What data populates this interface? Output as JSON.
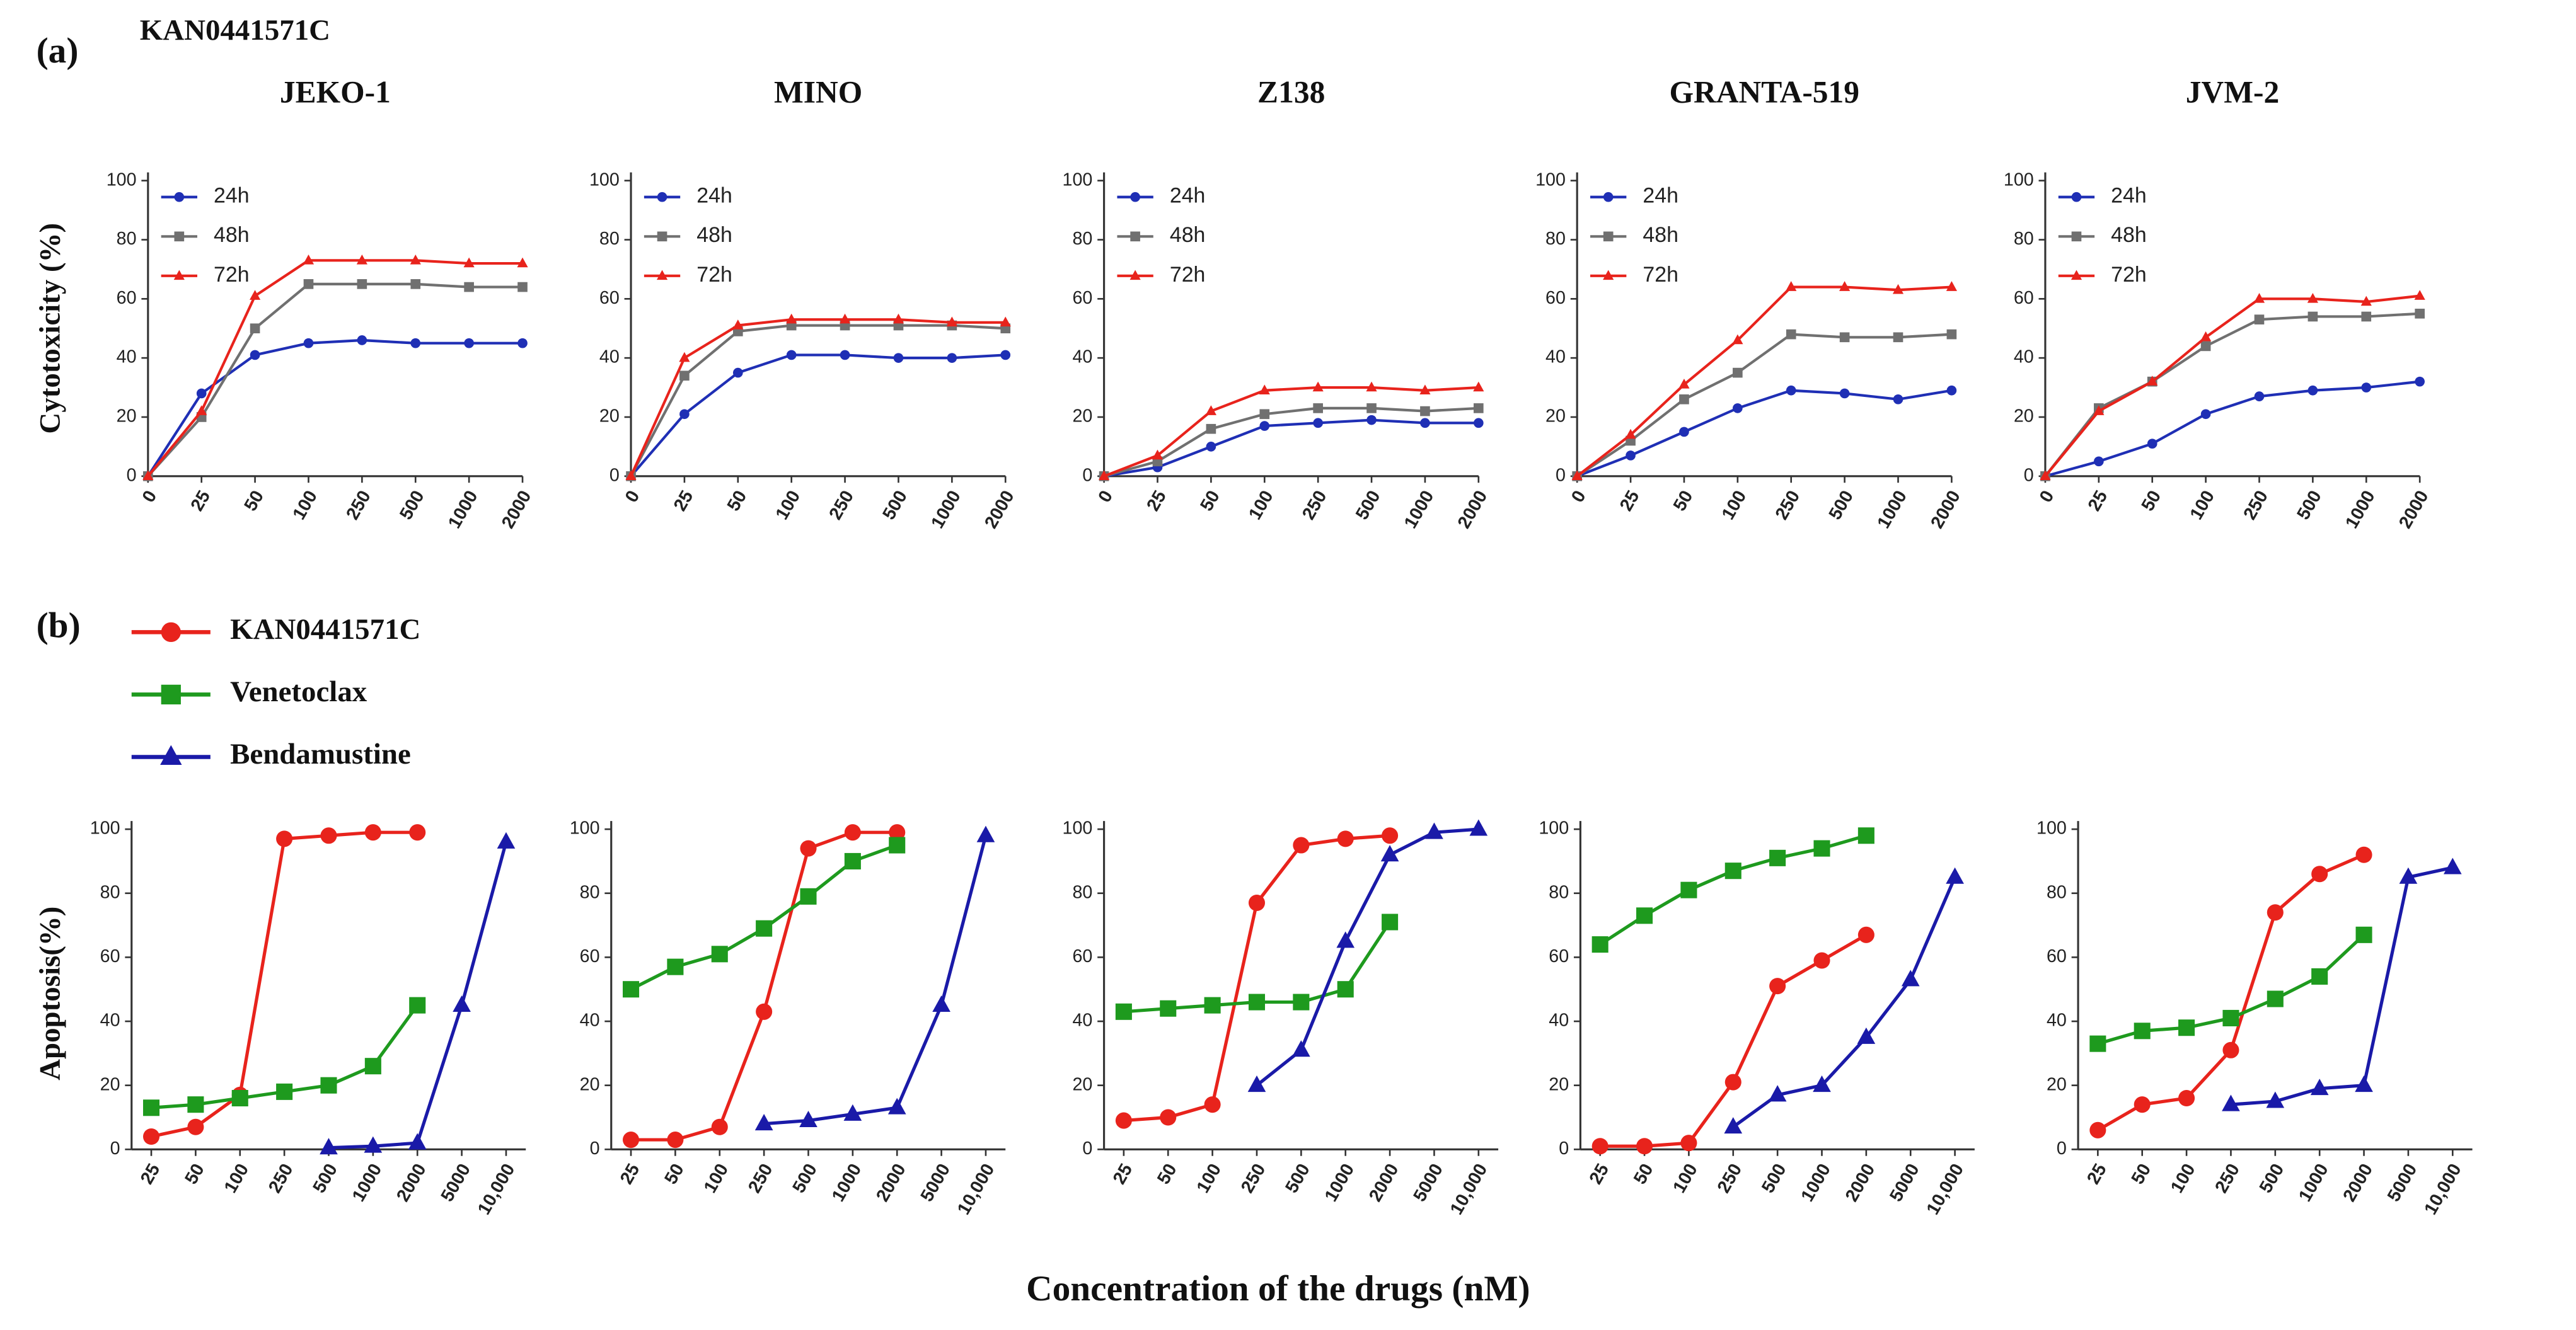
{
  "labels": {
    "panel_a": "(a)",
    "drug": "KAN0441571C",
    "panel_b": "(b)",
    "y_a": "Cytotoxicity (%)",
    "y_b": "Apoptosis(%)",
    "x_b": "Concentration  of the drugs (nM)"
  },
  "chart_data": [
    {
      "type": "line",
      "title": "JEKO-1",
      "categories": [
        "0",
        "25",
        "50",
        "100",
        "250",
        "500",
        "1000",
        "2000"
      ],
      "ylim": [
        0,
        100
      ],
      "yticks": [
        0,
        20,
        40,
        60,
        80,
        100
      ],
      "legend": "upper left",
      "series": [
        {
          "name": "24h",
          "color": "#1f2fb5",
          "marker": "circle",
          "values": [
            0,
            28,
            41,
            45,
            46,
            45,
            45,
            45
          ]
        },
        {
          "name": "48h",
          "color": "#707070",
          "marker": "square",
          "values": [
            0,
            20,
            50,
            65,
            65,
            65,
            64,
            64
          ]
        },
        {
          "name": "72h",
          "color": "#e8231c",
          "marker": "triangle",
          "values": [
            0,
            22,
            61,
            73,
            73,
            73,
            72,
            72
          ]
        }
      ]
    },
    {
      "type": "line",
      "title": "MINO",
      "categories": [
        "0",
        "25",
        "50",
        "100",
        "250",
        "500",
        "1000",
        "2000"
      ],
      "ylim": [
        0,
        100
      ],
      "yticks": [
        0,
        20,
        40,
        60,
        80,
        100
      ],
      "legend": "upper left",
      "series": [
        {
          "name": "24h",
          "color": "#1f2fb5",
          "marker": "circle",
          "values": [
            0,
            21,
            35,
            41,
            41,
            40,
            40,
            41
          ]
        },
        {
          "name": "48h",
          "color": "#707070",
          "marker": "square",
          "values": [
            0,
            34,
            49,
            51,
            51,
            51,
            51,
            50
          ]
        },
        {
          "name": "72h",
          "color": "#e8231c",
          "marker": "triangle",
          "values": [
            0,
            40,
            51,
            53,
            53,
            53,
            52,
            52
          ]
        }
      ]
    },
    {
      "type": "line",
      "title": "Z138",
      "categories": [
        "0",
        "25",
        "50",
        "100",
        "250",
        "500",
        "1000",
        "2000"
      ],
      "ylim": [
        0,
        100
      ],
      "yticks": [
        0,
        20,
        40,
        60,
        80,
        100
      ],
      "legend": "upper left",
      "series": [
        {
          "name": "24h",
          "color": "#1f2fb5",
          "marker": "circle",
          "values": [
            0,
            3,
            10,
            17,
            18,
            19,
            18,
            18
          ]
        },
        {
          "name": "48h",
          "color": "#707070",
          "marker": "square",
          "values": [
            0,
            5,
            16,
            21,
            23,
            23,
            22,
            23
          ]
        },
        {
          "name": "72h",
          "color": "#e8231c",
          "marker": "triangle",
          "values": [
            0,
            7,
            22,
            29,
            30,
            30,
            29,
            30
          ]
        }
      ]
    },
    {
      "type": "line",
      "title": "GRANTA-519",
      "categories": [
        "0",
        "25",
        "50",
        "100",
        "250",
        "500",
        "1000",
        "2000"
      ],
      "ylim": [
        0,
        100
      ],
      "yticks": [
        0,
        20,
        40,
        60,
        80,
        100
      ],
      "legend": "upper left",
      "series": [
        {
          "name": "24h",
          "color": "#1f2fb5",
          "marker": "circle",
          "values": [
            0,
            7,
            15,
            23,
            29,
            28,
            26,
            29
          ]
        },
        {
          "name": "48h",
          "color": "#707070",
          "marker": "square",
          "values": [
            0,
            12,
            26,
            35,
            48,
            47,
            47,
            48
          ]
        },
        {
          "name": "72h",
          "color": "#e8231c",
          "marker": "triangle",
          "values": [
            0,
            14,
            31,
            46,
            64,
            64,
            63,
            64
          ]
        }
      ]
    },
    {
      "type": "line",
      "title": "JVM-2",
      "categories": [
        "0",
        "25",
        "50",
        "100",
        "250",
        "500",
        "1000",
        "2000"
      ],
      "ylim": [
        0,
        100
      ],
      "yticks": [
        0,
        20,
        40,
        60,
        80,
        100
      ],
      "legend": "upper left",
      "series": [
        {
          "name": "24h",
          "color": "#1f2fb5",
          "marker": "circle",
          "values": [
            0,
            5,
            11,
            21,
            27,
            29,
            30,
            32
          ]
        },
        {
          "name": "48h",
          "color": "#707070",
          "marker": "square",
          "values": [
            0,
            23,
            32,
            44,
            53,
            54,
            54,
            55
          ]
        },
        {
          "name": "72h",
          "color": "#e8231c",
          "marker": "triangle",
          "values": [
            0,
            22,
            32,
            47,
            60,
            60,
            59,
            61
          ]
        }
      ]
    },
    {
      "type": "line",
      "categories": [
        "25",
        "50",
        "100",
        "250",
        "500",
        "1000",
        "2000",
        "5000",
        "10,000"
      ],
      "ylim": [
        0,
        100
      ],
      "yticks": [
        0,
        20,
        40,
        60,
        80,
        100
      ],
      "legend": "above",
      "series": [
        {
          "name": "KAN0441571C",
          "color": "#e8231c",
          "marker": "circle",
          "values": [
            4,
            7,
            17,
            97,
            98,
            99,
            99,
            null,
            null
          ]
        },
        {
          "name": "Venetoclax",
          "color": "#1e9a1e",
          "marker": "square",
          "values": [
            13,
            14,
            16,
            18,
            20,
            26,
            45,
            null,
            null
          ]
        },
        {
          "name": "Bendamustine",
          "color": "#1a1aa8",
          "marker": "triangle",
          "values": [
            null,
            null,
            null,
            null,
            0.5,
            1,
            2,
            45,
            96
          ]
        }
      ]
    },
    {
      "type": "line",
      "categories": [
        "25",
        "50",
        "100",
        "250",
        "500",
        "1000",
        "2000",
        "5000",
        "10,000"
      ],
      "ylim": [
        0,
        100
      ],
      "yticks": [
        0,
        20,
        40,
        60,
        80,
        100
      ],
      "series": [
        {
          "color": "#e8231c",
          "marker": "circle",
          "values": [
            3,
            3,
            7,
            43,
            94,
            99,
            99,
            null,
            null
          ]
        },
        {
          "color": "#1e9a1e",
          "marker": "square",
          "values": [
            50,
            57,
            61,
            69,
            79,
            90,
            95,
            null,
            null
          ]
        },
        {
          "color": "#1a1aa8",
          "marker": "triangle",
          "values": [
            null,
            null,
            null,
            8,
            9,
            11,
            13,
            45,
            98
          ]
        }
      ]
    },
    {
      "type": "line",
      "categories": [
        "25",
        "50",
        "100",
        "250",
        "500",
        "1000",
        "2000",
        "5000",
        "10,000"
      ],
      "ylim": [
        0,
        100
      ],
      "yticks": [
        0,
        20,
        40,
        60,
        80,
        100
      ],
      "series": [
        {
          "color": "#e8231c",
          "marker": "circle",
          "values": [
            9,
            10,
            14,
            77,
            95,
            97,
            98,
            null,
            null
          ]
        },
        {
          "color": "#1e9a1e",
          "marker": "square",
          "values": [
            43,
            44,
            45,
            46,
            46,
            50,
            71,
            null,
            null
          ]
        },
        {
          "color": "#1a1aa8",
          "marker": "triangle",
          "values": [
            null,
            null,
            null,
            20,
            31,
            65,
            92,
            99,
            100
          ]
        }
      ]
    },
    {
      "type": "line",
      "categories": [
        "25",
        "50",
        "100",
        "250",
        "500",
        "1000",
        "2000",
        "5000",
        "10,000"
      ],
      "ylim": [
        0,
        100
      ],
      "yticks": [
        0,
        20,
        40,
        60,
        80,
        100
      ],
      "series": [
        {
          "color": "#e8231c",
          "marker": "circle",
          "values": [
            1,
            1,
            2,
            21,
            51,
            59,
            67,
            null,
            null
          ]
        },
        {
          "color": "#1e9a1e",
          "marker": "square",
          "values": [
            64,
            73,
            81,
            87,
            91,
            94,
            98,
            null,
            null
          ]
        },
        {
          "color": "#1a1aa8",
          "marker": "triangle",
          "values": [
            null,
            null,
            null,
            7,
            17,
            20,
            35,
            53,
            85
          ]
        }
      ]
    },
    {
      "type": "line",
      "categories": [
        "25",
        "50",
        "100",
        "250",
        "500",
        "1000",
        "2000",
        "5000",
        "10,000"
      ],
      "ylim": [
        0,
        100
      ],
      "yticks": [
        0,
        20,
        40,
        60,
        80,
        100
      ],
      "series": [
        {
          "color": "#e8231c",
          "marker": "circle",
          "values": [
            6,
            14,
            16,
            31,
            74,
            86,
            92,
            null,
            null
          ]
        },
        {
          "color": "#1e9a1e",
          "marker": "square",
          "values": [
            33,
            37,
            38,
            41,
            47,
            54,
            67,
            null,
            null
          ]
        },
        {
          "color": "#1a1aa8",
          "marker": "triangle",
          "values": [
            null,
            null,
            null,
            14,
            15,
            19,
            20,
            85,
            88
          ]
        }
      ]
    }
  ]
}
